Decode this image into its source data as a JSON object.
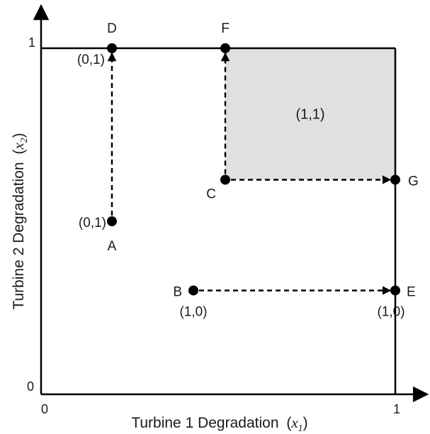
{
  "axes": {
    "x_label": "Turbine 1 Degradation",
    "x_var": "x",
    "x_sub": "1",
    "y_label": "Turbine 2 Degradation",
    "y_var": "x",
    "y_sub": "2",
    "x_tick_min": "0",
    "x_tick_max": "1",
    "y_tick_min": "0",
    "y_tick_max": "1"
  },
  "region": {
    "label": "(1,1)",
    "fill_color": "#e0e0e0"
  },
  "points": {
    "A": {
      "name": "A",
      "x": 0.2,
      "y": 0.5,
      "state": "(0,1)"
    },
    "B": {
      "name": "B",
      "x": 0.43,
      "y": 0.3,
      "state": "(1,0)"
    },
    "C": {
      "name": "C",
      "x": 0.52,
      "y": 0.62,
      "state": ""
    },
    "D": {
      "name": "D",
      "x": 0.2,
      "y": 1.0,
      "state": "(0,1)"
    },
    "E": {
      "name": "E",
      "x": 1.0,
      "y": 0.3,
      "state": "(1,0)"
    },
    "F": {
      "name": "F",
      "x": 0.52,
      "y": 1.0,
      "state": ""
    },
    "G": {
      "name": "G",
      "x": 1.0,
      "y": 0.62,
      "state": ""
    }
  },
  "transitions": [
    {
      "from": "A",
      "to": "D"
    },
    {
      "from": "B",
      "to": "E"
    },
    {
      "from": "C",
      "to": "F"
    },
    {
      "from": "C",
      "to": "G"
    }
  ],
  "colors": {
    "ink": "#000000",
    "shade": "#e0e0e0"
  }
}
